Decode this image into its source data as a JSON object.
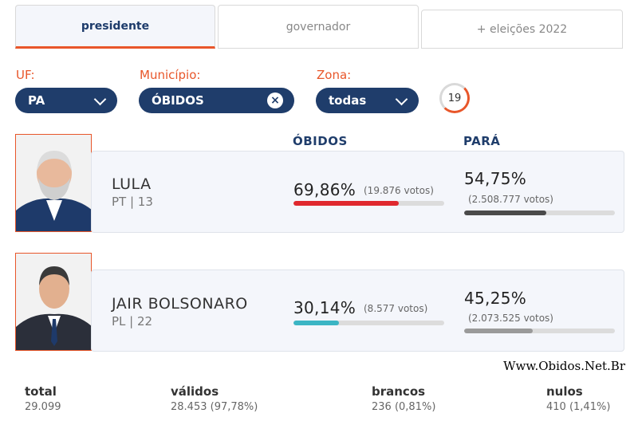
{
  "tabs": [
    {
      "label": "presidente",
      "active": true
    },
    {
      "label": "governador",
      "active": false
    },
    {
      "label": "+ eleições 2022",
      "active": false
    }
  ],
  "filters": {
    "uf": {
      "label": "UF:",
      "value": "PA"
    },
    "municipio": {
      "label": "Município:",
      "value": "ÓBIDOS"
    },
    "zona": {
      "label": "Zona:",
      "value": "todas"
    },
    "refresh_seconds": "19"
  },
  "columns": {
    "local": "ÓBIDOS",
    "state": "PARÁ"
  },
  "candidates": [
    {
      "name": "LULA",
      "party": "PT | 13",
      "local_pct": "69,86%",
      "local_votes": "(19.876 votos)",
      "local_fraction": 0.6986,
      "state_pct": "54,75%",
      "state_votes": "(2.508.777 votos)",
      "state_fraction": 0.5475,
      "local_color": "#e0282e",
      "state_color": "#4a4a4a"
    },
    {
      "name": "JAIR BOLSONARO",
      "party": "PL | 22",
      "local_pct": "30,14%",
      "local_votes": "(8.577 votos)",
      "local_fraction": 0.3014,
      "state_pct": "45,25%",
      "state_votes": "(2.073.525 votos)",
      "state_fraction": 0.4525,
      "local_color": "#3bb5c4",
      "state_color": "#9a9a9a"
    }
  ],
  "watermark": "Www.Obidos.Net.Br",
  "totals": {
    "total": {
      "label": "total",
      "value": "29.099"
    },
    "validos": {
      "label": "válidos",
      "value": "28.453 (97,78%)"
    },
    "brancos": {
      "label": "brancos",
      "value": "236 (0,81%)"
    },
    "nulos": {
      "label": "nulos",
      "value": "410 (1,41%)"
    }
  }
}
